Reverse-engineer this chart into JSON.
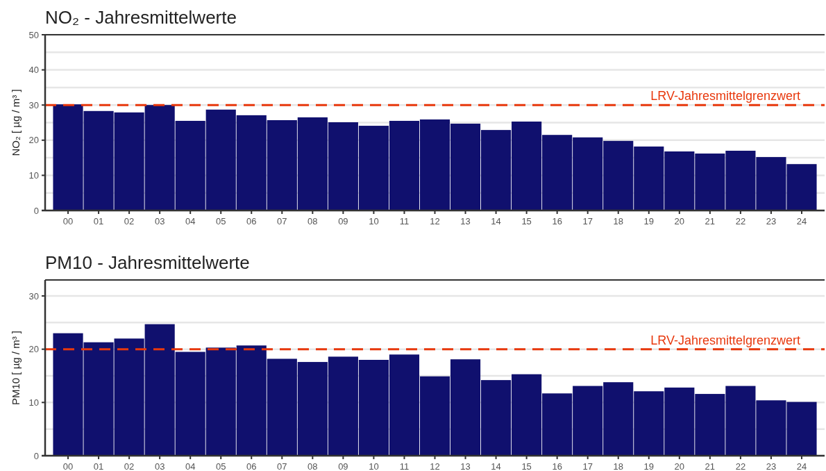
{
  "chart_data": [
    {
      "type": "bar",
      "title": "NO₂ - Jahresmittelwerte",
      "ylabel": "NO₂ [ µg / m³ ]",
      "categories": [
        "00",
        "01",
        "02",
        "03",
        "04",
        "05",
        "06",
        "07",
        "08",
        "09",
        "10",
        "11",
        "12",
        "13",
        "14",
        "15",
        "16",
        "17",
        "18",
        "19",
        "20",
        "21",
        "22",
        "23",
        "24"
      ],
      "values": [
        30.2,
        28.3,
        27.9,
        30.0,
        25.5,
        28.7,
        27.1,
        25.7,
        26.5,
        25.1,
        24.1,
        25.5,
        25.9,
        24.7,
        22.9,
        25.3,
        21.5,
        20.8,
        19.8,
        18.2,
        16.8,
        16.2,
        17.0,
        15.2,
        13.2
      ],
      "color": "#10106e",
      "ylim": [
        0,
        50
      ],
      "yticks": [
        0,
        {
          "value": 5,
          "label": null
        },
        10,
        {
          "value": 15,
          "label": null
        },
        20,
        {
          "value": 25,
          "label": null
        },
        30,
        {
          "value": 35,
          "label": null
        },
        40,
        {
          "value": 45,
          "label": null
        },
        50
      ],
      "grid": "y",
      "ref_lines": [
        {
          "axis": "y",
          "value": 30,
          "label": "LRV-Jahresmittelgrenzwert",
          "color": "#e8380d",
          "line_style": "dashed"
        }
      ]
    },
    {
      "type": "bar",
      "title": "PM10 - Jahresmittelwerte",
      "ylabel": "PM10 [ µg / m³ ]",
      "categories": [
        "00",
        "01",
        "02",
        "03",
        "04",
        "05",
        "06",
        "07",
        "08",
        "09",
        "10",
        "11",
        "12",
        "13",
        "14",
        "15",
        "16",
        "17",
        "18",
        "19",
        "20",
        "21",
        "22",
        "23",
        "24"
      ],
      "values": [
        23.0,
        21.3,
        22.0,
        24.7,
        19.5,
        20.3,
        20.7,
        18.2,
        17.6,
        18.6,
        18.0,
        19.0,
        14.9,
        18.1,
        14.2,
        15.3,
        11.7,
        13.1,
        13.8,
        12.1,
        12.8,
        11.6,
        13.1,
        10.4,
        10.1
      ],
      "color": "#10106e",
      "ylim": [
        0,
        33
      ],
      "yticks": [
        0,
        {
          "value": 5,
          "label": null
        },
        10,
        {
          "value": 15,
          "label": null
        },
        20,
        {
          "value": 25,
          "label": null
        },
        30
      ],
      "grid": "y",
      "ref_lines": [
        {
          "axis": "y",
          "value": 20,
          "label": "LRV-Jahresmittelgrenzwert",
          "color": "#e8380d",
          "line_style": "dashed"
        }
      ]
    }
  ]
}
